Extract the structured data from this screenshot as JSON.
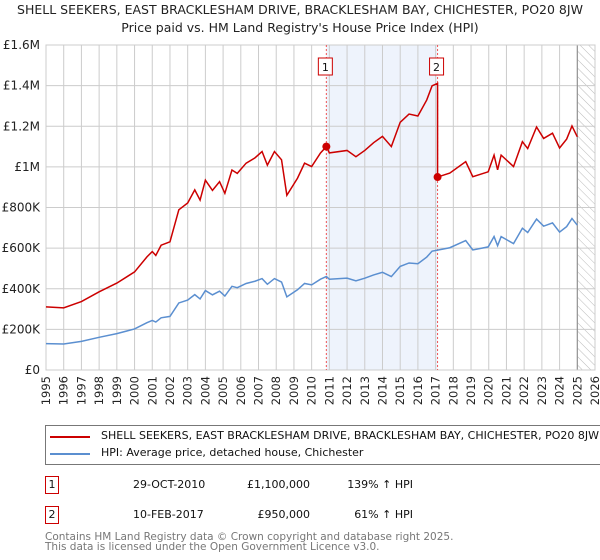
{
  "chart_data": {
    "type": "line",
    "title": "SHELL SEEKERS, EAST BRACKLESHAM DRIVE, BRACKLESHAM BAY, CHICHESTER, PO20 8JW",
    "subtitle": "Price paid vs. HM Land Registry's House Price Index (HPI)",
    "xlim": [
      1995,
      2026
    ],
    "ylim": [
      0,
      1600000
    ],
    "x_ticks": [
      "1995",
      "1996",
      "1997",
      "1998",
      "1999",
      "2000",
      "2001",
      "2002",
      "2003",
      "2004",
      "2005",
      "2006",
      "2007",
      "2008",
      "2009",
      "2010",
      "2011",
      "2012",
      "2013",
      "2014",
      "2015",
      "2016",
      "2017",
      "2018",
      "2019",
      "2020",
      "2021",
      "2022",
      "2023",
      "2024",
      "2025",
      "2026"
    ],
    "y_ticks": [
      {
        "value": 0,
        "label": "£0"
      },
      {
        "value": 200000,
        "label": "£200K"
      },
      {
        "value": 400000,
        "label": "£400K"
      },
      {
        "value": 600000,
        "label": "£600K"
      },
      {
        "value": 800000,
        "label": "£800K"
      },
      {
        "value": 1000000,
        "label": "£1M"
      },
      {
        "value": 1200000,
        "label": "£1.2M"
      },
      {
        "value": 1400000,
        "label": "£1.4M"
      },
      {
        "value": 1600000,
        "label": "£1.6M"
      }
    ],
    "grid": true,
    "data_end": 2025.0,
    "series": [
      {
        "name": "SHELL SEEKERS, EAST BRACKLESHAM DRIVE, BRACKLESHAM BAY, CHICHESTER, PO20 8JW (detached house)",
        "color": "#cc0000",
        "derived_from": "hpi_indexed_to_sales"
      },
      {
        "name": "HPI: Average price, detached house, Chichester",
        "color": "#5b8fd0",
        "x": [
          1995,
          1996,
          1997,
          1998,
          1999,
          2000,
          2000.7,
          2001,
          2001.2,
          2001.5,
          2002,
          2002.5,
          2003,
          2003.4,
          2003.7,
          2004,
          2004.4,
          2004.8,
          2005.1,
          2005.5,
          2005.8,
          2006.3,
          2006.8,
          2007.2,
          2007.5,
          2007.9,
          2008.3,
          2008.6,
          2009.2,
          2009.6,
          2010,
          2010.5,
          2010.83,
          2011,
          2012,
          2012.5,
          2013,
          2013.5,
          2014,
          2014.5,
          2015,
          2015.5,
          2016,
          2016.5,
          2016.8,
          2017.11,
          2017.8,
          2018.7,
          2019.1,
          2019.97,
          2020.3,
          2020.5,
          2020.7,
          2021.4,
          2021.9,
          2022.2,
          2022.7,
          2023.1,
          2023.6,
          2024.0,
          2024.4,
          2024.7,
          2025.0
        ],
        "y": [
          130000,
          128000,
          141000,
          161000,
          179000,
          202000,
          233000,
          244000,
          236000,
          257000,
          264000,
          330000,
          344000,
          371000,
          350000,
          391000,
          370000,
          388000,
          364000,
          412000,
          405000,
          426000,
          437000,
          450000,
          422000,
          450000,
          433000,
          360000,
          395000,
          426000,
          419000,
          447000,
          460000,
          447000,
          452000,
          439000,
          452000,
          468000,
          481000,
          460000,
          510000,
          527000,
          523000,
          556000,
          585000,
          590000,
          602000,
          637000,
          591000,
          606000,
          657000,
          612000,
          657000,
          622000,
          698000,
          677000,
          743000,
          708000,
          724000,
          679000,
          706000,
          746000,
          713000
        ]
      }
    ],
    "sales": [
      {
        "id": "1",
        "x": 2010.83,
        "value": 1100000
      },
      {
        "id": "2",
        "x": 2017.11,
        "value": 950000
      }
    ],
    "pre_first_sale_ratio": 2.39
  },
  "legend": {
    "property": "SHELL SEEKERS, EAST BRACKLESHAM DRIVE, BRACKLESHAM BAY, CHICHESTER, PO20 8JW (detached house)",
    "hpi": "HPI: Average price, detached house, Chichester"
  },
  "sales_table": [
    {
      "num": "1",
      "date": "29-OCT-2010",
      "price": "£1,100,000",
      "pct": "139% ↑ HPI"
    },
    {
      "num": "2",
      "date": "10-FEB-2017",
      "price": "£950,000",
      "pct": "61% ↑ HPI"
    }
  ],
  "footer": {
    "line1": "Contains HM Land Registry data © Crown copyright and database right 2025.",
    "line2": "This data is licensed under the Open Government Licence v3.0."
  },
  "colors": {
    "property": "#cc0000",
    "hpi": "#5b8fd0",
    "shade": "#eef3fc",
    "grid": "#cccccc"
  }
}
